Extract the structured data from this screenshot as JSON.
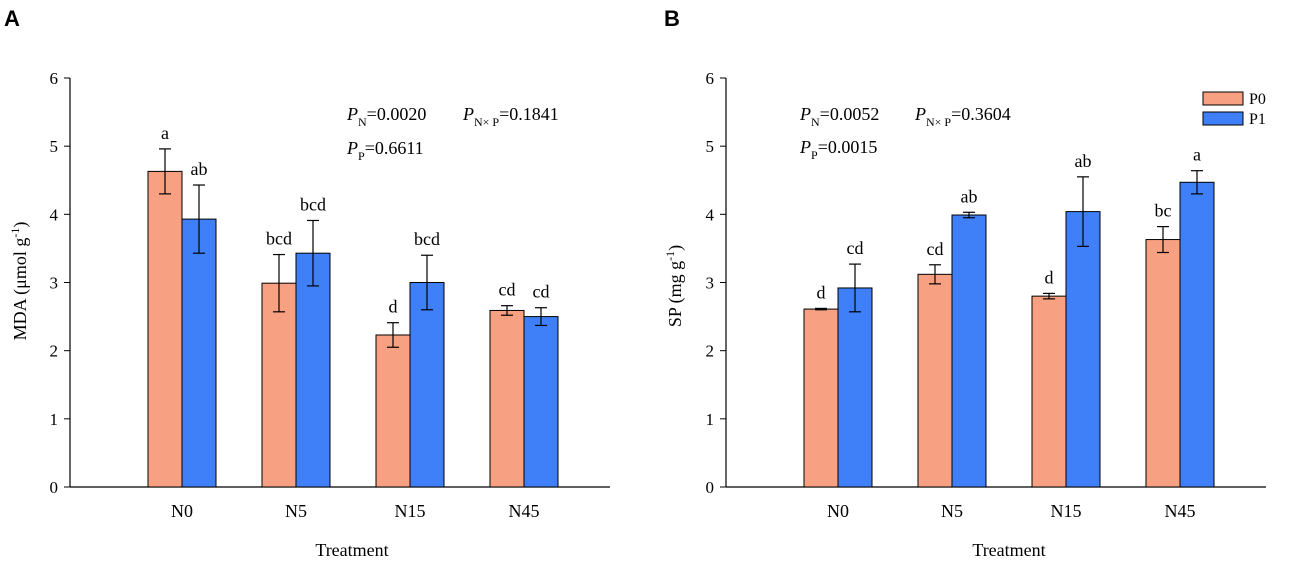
{
  "colors": {
    "P0": "#F7A182",
    "P1": "#3F7FF7",
    "axis": "#000000"
  },
  "legend": [
    {
      "label": "P0"
    },
    {
      "label": "P1"
    }
  ],
  "chart_data": [
    {
      "panel": "A",
      "type": "bar",
      "categories": [
        "N0",
        "N5",
        "N15",
        "N45"
      ],
      "xlabel": "Treatment",
      "ylabel": "MDA (μmol g",
      "ylabel_sup": "-1",
      "ylabel_close": ")",
      "ylim": [
        0,
        6
      ],
      "yticks": [
        "0",
        "1",
        "2",
        "3",
        "4",
        "5",
        "6"
      ],
      "series": [
        {
          "name": "P0",
          "values": [
            4.63,
            2.99,
            2.23,
            2.59
          ],
          "errors": [
            0.33,
            0.42,
            0.18,
            0.07
          ],
          "letters": [
            "a",
            "bcd",
            "d",
            "cd"
          ]
        },
        {
          "name": "P1",
          "values": [
            3.93,
            3.43,
            3.0,
            2.5
          ],
          "errors": [
            0.5,
            0.48,
            0.4,
            0.13
          ],
          "letters": [
            "ab",
            "bcd",
            "bcd",
            "cd"
          ]
        }
      ],
      "stats": {
        "pn_label": "P",
        "pn_sub": "N",
        "pn_value": "=0.0020",
        "pnxp_label": "P",
        "pnxp_sub": "N× P",
        "pnxp_value": "=0.1841",
        "pp_label": "P",
        "pp_sub": "P",
        "pp_value": "=0.6611"
      },
      "legend": "none"
    },
    {
      "panel": "B",
      "type": "bar",
      "categories": [
        "N0",
        "N5",
        "N15",
        "N45"
      ],
      "xlabel": "Treatment",
      "ylabel": "SP (mg g",
      "ylabel_sup": "-1",
      "ylabel_close": ")",
      "ylim": [
        0,
        6
      ],
      "yticks": [
        "0",
        "1",
        "2",
        "3",
        "4",
        "5",
        "6"
      ],
      "series": [
        {
          "name": "P0",
          "values": [
            2.61,
            3.12,
            2.8,
            3.63
          ],
          "errors": [
            0.01,
            0.14,
            0.04,
            0.19
          ],
          "letters": [
            "d",
            "cd",
            "d",
            "bc"
          ]
        },
        {
          "name": "P1",
          "values": [
            2.92,
            3.99,
            4.04,
            4.47
          ],
          "errors": [
            0.35,
            0.04,
            0.51,
            0.17
          ],
          "letters": [
            "cd",
            "ab",
            "ab",
            "a"
          ]
        }
      ],
      "stats": {
        "pn_label": "P",
        "pn_sub": "N",
        "pn_value": "=0.0052",
        "pnxp_label": "P",
        "pnxp_sub": "N× P",
        "pnxp_value": "=0.3604",
        "pp_label": "P",
        "pp_sub": "P",
        "pp_value": "=0.0015"
      },
      "legend": "top-right"
    }
  ]
}
